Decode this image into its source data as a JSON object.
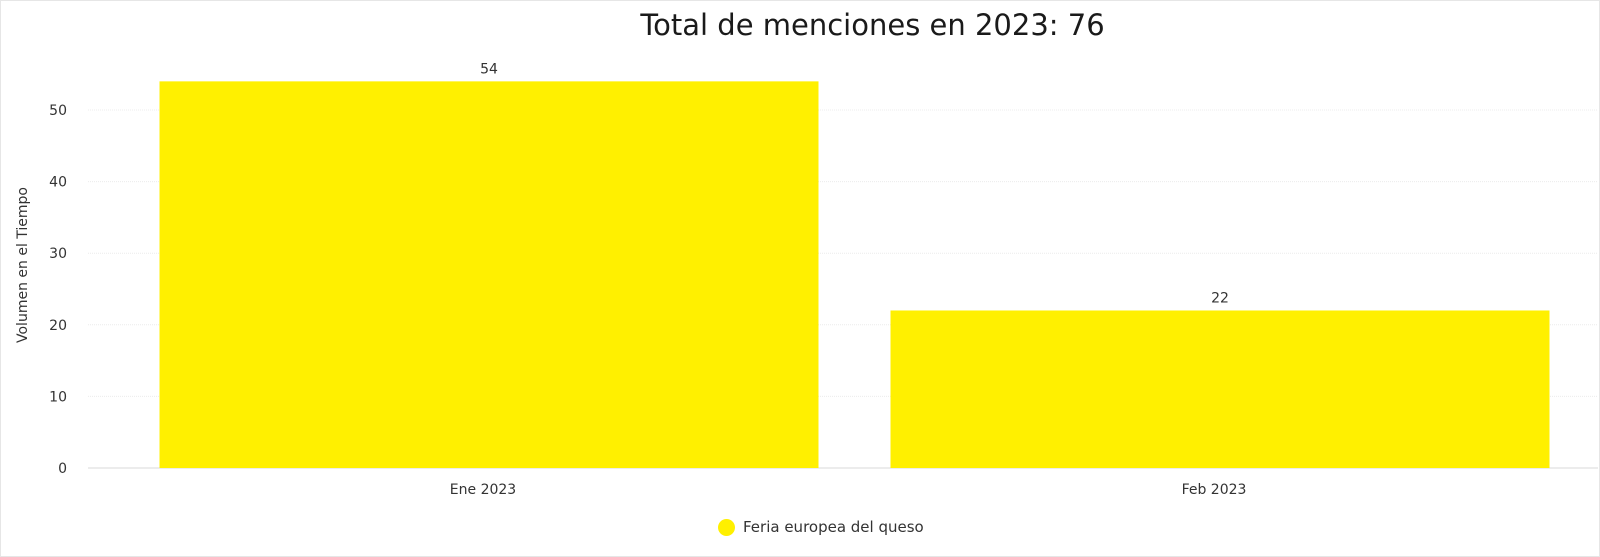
{
  "chart_data": {
    "type": "bar",
    "title": "Total de menciones en 2023: 76",
    "xlabel": "",
    "ylabel": "Volumen en el Tiempo",
    "categories": [
      "Ene 2023",
      "Feb 2023"
    ],
    "series": [
      {
        "name": "Feria europea del queso",
        "values": [
          54,
          22
        ],
        "color": "#fff000"
      }
    ],
    "data_labels": [
      "54",
      "22"
    ],
    "ylim": [
      0,
      54
    ],
    "yticks": [
      0,
      10,
      20,
      30,
      40,
      50
    ],
    "grid": true,
    "legend_position": "bottom-center"
  }
}
